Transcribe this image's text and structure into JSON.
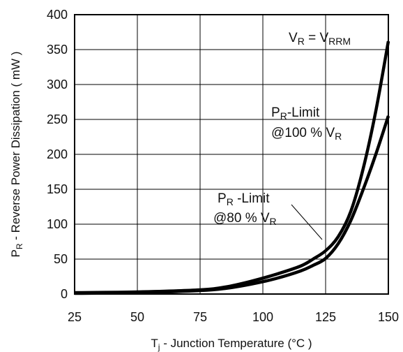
{
  "chart_data": {
    "type": "line",
    "xlabel": {
      "main": "T",
      "sub": "j",
      "rest": " - Junction Temperature (°C )"
    },
    "ylabel": {
      "main": "P",
      "sub": "R",
      "rest": " - Reverse Power Dissipation ( mW )"
    },
    "xlim": [
      25,
      150
    ],
    "ylim": [
      0,
      400
    ],
    "x_ticks": [
      "25",
      "50",
      "75",
      "100",
      "125",
      "150"
    ],
    "y_ticks": [
      "0",
      "50",
      "100",
      "150",
      "200",
      "250",
      "300",
      "350",
      "400"
    ],
    "grid": true,
    "series": [
      {
        "name": "VR = VRRM",
        "x": [
          25,
          50,
          75,
          85,
          95,
          105,
          115,
          120,
          125,
          130,
          135,
          140,
          145,
          150
        ],
        "y": [
          2,
          3,
          6,
          10,
          18,
          28,
          40,
          50,
          62,
          82,
          118,
          180,
          262,
          362
        ]
      },
      {
        "name": "PR-Limit @100 % VR",
        "x": [
          25,
          50,
          75,
          85,
          95,
          105,
          115,
          120,
          125,
          130,
          135,
          140,
          145,
          150
        ],
        "y": [
          1,
          2,
          5,
          8,
          14,
          22,
          33,
          41,
          51,
          72,
          105,
          150,
          200,
          255
        ]
      }
    ],
    "annotations": [
      {
        "id": "vrrm",
        "text": "V",
        "sub": "R",
        "mid": " = V",
        "sub2": "RRM",
        "tail": ""
      },
      {
        "id": "limit100-a",
        "text": "P",
        "sub": "R",
        "mid": "-Limit",
        "sub2": "",
        "tail": ""
      },
      {
        "id": "limit100-b",
        "text": "@100 % V",
        "sub": "R",
        "mid": "",
        "sub2": "",
        "tail": ""
      },
      {
        "id": "limit80-a",
        "text": "P",
        "sub": "R",
        "mid": " -Limit",
        "sub2": "",
        "tail": ""
      },
      {
        "id": "limit80-b",
        "text": "@80 % V",
        "sub": "R",
        "mid": "",
        "sub2": "",
        "tail": ""
      }
    ]
  }
}
